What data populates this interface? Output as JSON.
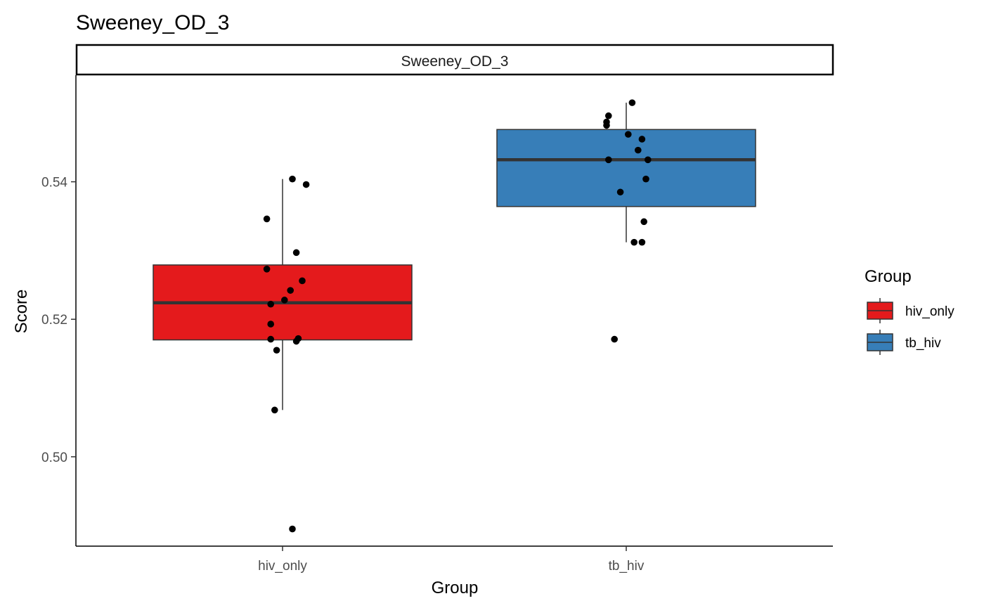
{
  "chart_data": {
    "type": "box",
    "title": "Sweeney_OD_3",
    "facet_label": "Sweeney_OD_3",
    "xlabel": "Group",
    "ylabel": "Score",
    "categories": [
      "hiv_only",
      "tb_hiv"
    ],
    "y_ticks": [
      {
        "value": 0.5,
        "label": "0.50"
      },
      {
        "value": 0.52,
        "label": "0.52"
      },
      {
        "value": 0.54,
        "label": "0.54"
      }
    ],
    "ylim": [
      0.487,
      0.5555
    ],
    "legend": {
      "title": "Group",
      "position": "right"
    },
    "series": [
      {
        "name": "hiv_only",
        "color": "#E41A1C",
        "box": {
          "whisker_low": 0.5068,
          "q1": 0.517,
          "median": 0.5224,
          "q3": 0.5279,
          "whisker_high": 0.5404
        },
        "points": [
          {
            "dx": 0.05,
            "y": 0.4895
          },
          {
            "dx": -0.04,
            "y": 0.5068
          },
          {
            "dx": -0.03,
            "y": 0.5155
          },
          {
            "dx": -0.06,
            "y": 0.5171
          },
          {
            "dx": 0.07,
            "y": 0.5168
          },
          {
            "dx": 0.08,
            "y": 0.5172
          },
          {
            "dx": -0.06,
            "y": 0.5193
          },
          {
            "dx": -0.06,
            "y": 0.5222
          },
          {
            "dx": 0.01,
            "y": 0.5228
          },
          {
            "dx": 0.04,
            "y": 0.5242
          },
          {
            "dx": 0.1,
            "y": 0.5256
          },
          {
            "dx": -0.08,
            "y": 0.5273
          },
          {
            "dx": 0.07,
            "y": 0.5297
          },
          {
            "dx": -0.08,
            "y": 0.5346
          },
          {
            "dx": 0.12,
            "y": 0.5396
          },
          {
            "dx": 0.05,
            "y": 0.5404
          }
        ]
      },
      {
        "name": "tb_hiv",
        "color": "#377EB8",
        "box": {
          "whisker_low": 0.5312,
          "q1": 0.5364,
          "median": 0.5432,
          "q3": 0.5476,
          "whisker_high": 0.5515
        },
        "points": [
          {
            "dx": -0.06,
            "y": 0.5171
          },
          {
            "dx": 0.04,
            "y": 0.5312
          },
          {
            "dx": 0.08,
            "y": 0.5312
          },
          {
            "dx": 0.09,
            "y": 0.5342
          },
          {
            "dx": -0.03,
            "y": 0.5385
          },
          {
            "dx": 0.1,
            "y": 0.5404
          },
          {
            "dx": -0.09,
            "y": 0.5432
          },
          {
            "dx": 0.11,
            "y": 0.5432
          },
          {
            "dx": 0.06,
            "y": 0.5446
          },
          {
            "dx": 0.08,
            "y": 0.5462
          },
          {
            "dx": 0.01,
            "y": 0.5469
          },
          {
            "dx": -0.1,
            "y": 0.5482
          },
          {
            "dx": -0.1,
            "y": 0.5487
          },
          {
            "dx": -0.09,
            "y": 0.5496
          },
          {
            "dx": 0.03,
            "y": 0.5515
          }
        ]
      }
    ]
  }
}
